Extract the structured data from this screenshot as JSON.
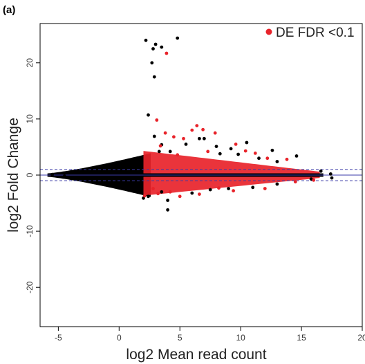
{
  "panel_label": "(a)",
  "chart_data": {
    "type": "scatter",
    "title": "",
    "xlabel": "log2 Mean  read  count",
    "ylabel": "log2 Fold Change",
    "xlim": [
      -6.5,
      20
    ],
    "ylim": [
      -27,
      27
    ],
    "xticks": [
      -5,
      0,
      5,
      10,
      15,
      20
    ],
    "yticks": [
      -20,
      -10,
      0,
      10,
      20
    ],
    "reference_lines": [
      1,
      -1,
      0
    ],
    "legend": {
      "position": "top-right",
      "label": "DE FDR <0.1",
      "color": "#e8232a"
    },
    "colors": {
      "not_de": "#000000",
      "de": "#e8232a",
      "reference": "#3a3aa8"
    },
    "series": [
      {
        "name": "",
        "color": "#000000",
        "points": [
          [
            2.2,
            24.0
          ],
          [
            3.0,
            23.3
          ],
          [
            2.8,
            22.5
          ],
          [
            3.5,
            22.8
          ],
          [
            4.8,
            24.4
          ],
          [
            2.7,
            20.0
          ],
          [
            2.9,
            17.5
          ],
          [
            2.4,
            10.7
          ],
          [
            2.9,
            6.9
          ],
          [
            3.5,
            5.4
          ],
          [
            3.3,
            4.2
          ],
          [
            4.2,
            4.2
          ],
          [
            5.5,
            5.5
          ],
          [
            6.6,
            6.5
          ],
          [
            7.0,
            6.5
          ],
          [
            8.0,
            5.1
          ],
          [
            8.3,
            3.8
          ],
          [
            9.2,
            4.7
          ],
          [
            9.8,
            3.7
          ],
          [
            10.5,
            5.8
          ],
          [
            12.6,
            4.4
          ],
          [
            14.6,
            3.4
          ],
          [
            11.5,
            3.0
          ],
          [
            13.0,
            2.4
          ],
          [
            4.0,
            -4.5
          ],
          [
            4.0,
            -6.2
          ],
          [
            2.4,
            -3.8
          ],
          [
            2.0,
            -4.1
          ],
          [
            3.5,
            -3.0
          ],
          [
            6.0,
            -3.2
          ],
          [
            7.5,
            -2.6
          ],
          [
            9.0,
            -2.4
          ],
          [
            11.0,
            -2.2
          ],
          [
            13.0,
            -1.6
          ],
          [
            15.8,
            -0.7
          ],
          [
            17.5,
            -0.5
          ],
          [
            16.6,
            0.7
          ],
          [
            17.4,
            0.2
          ],
          [
            -5.5,
            0.1
          ],
          [
            -4.5,
            -0.2
          ]
        ]
      },
      {
        "name": "DE FDR <0.1",
        "color": "#e8232a",
        "points": [
          [
            3.9,
            21.7
          ],
          [
            3.1,
            9.8
          ],
          [
            6.4,
            8.8
          ],
          [
            6.9,
            8.1
          ],
          [
            6.0,
            8.0
          ],
          [
            7.9,
            7.5
          ],
          [
            3.8,
            7.5
          ],
          [
            4.5,
            6.8
          ],
          [
            5.3,
            6.5
          ],
          [
            9.6,
            5.5
          ],
          [
            10.4,
            4.3
          ],
          [
            11.2,
            3.9
          ],
          [
            12.2,
            3.0
          ],
          [
            13.8,
            2.8
          ],
          [
            3.4,
            5.2
          ],
          [
            4.8,
            3.6
          ],
          [
            7.3,
            4.2
          ],
          [
            2.8,
            -2.4
          ],
          [
            3.2,
            -3.3
          ],
          [
            5.0,
            -3.8
          ],
          [
            6.6,
            -3.4
          ],
          [
            9.4,
            -2.8
          ],
          [
            12.0,
            -2.4
          ],
          [
            2.1,
            -3.7
          ],
          [
            4.2,
            -3.0
          ],
          [
            8.2,
            -2.3
          ],
          [
            14.5,
            -1.2
          ],
          [
            16.0,
            -0.9
          ]
        ]
      }
    ]
  }
}
